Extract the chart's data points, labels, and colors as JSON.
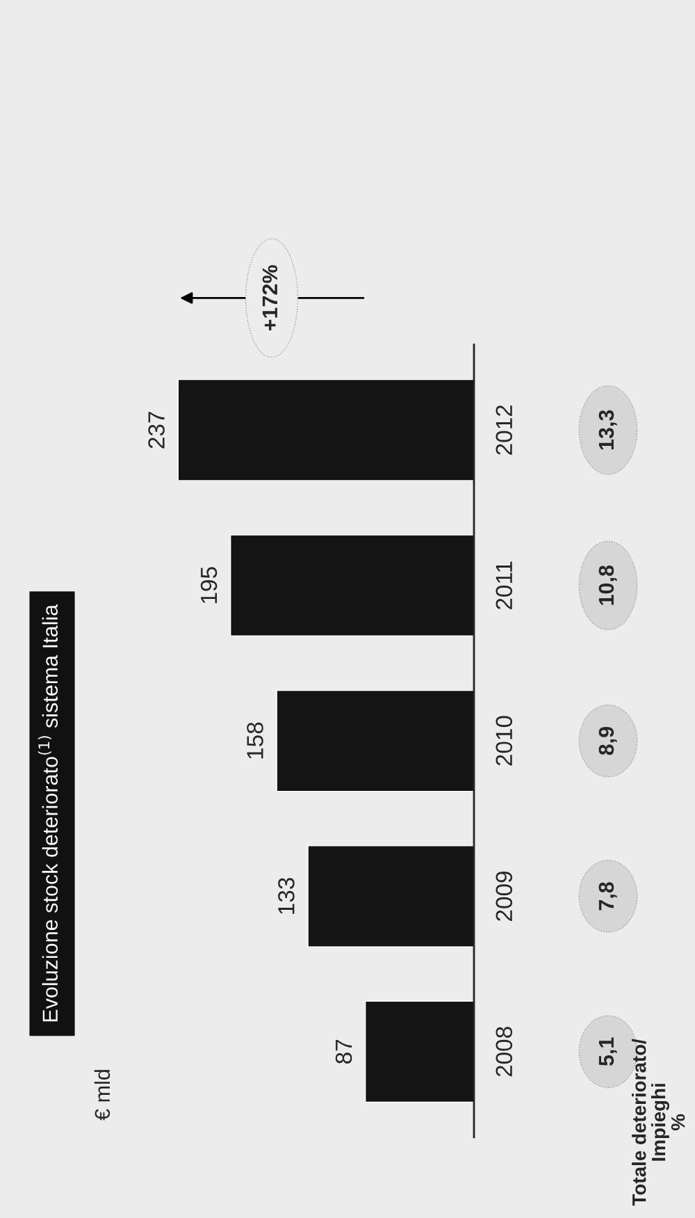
{
  "chart_data": {
    "type": "bar",
    "orientation": "horizontal",
    "title": "Evoluzione stock deteriorato$^{(1)}$ sistema Italia",
    "categories": [
      "2012",
      "2011",
      "2010",
      "2009",
      "2008"
    ],
    "values": [
      237,
      195,
      158,
      133,
      87
    ],
    "color": "#141414",
    "data_labels": true,
    "tick_labels": "y",
    "grid": false,
    "annotations": [
      "€ mld",
      "+172%",
      "Totale deteriorato/ Impieghi %",
      "13,3",
      "10,8",
      "8,9",
      "7,8",
      "5,1"
    ]
  }
}
